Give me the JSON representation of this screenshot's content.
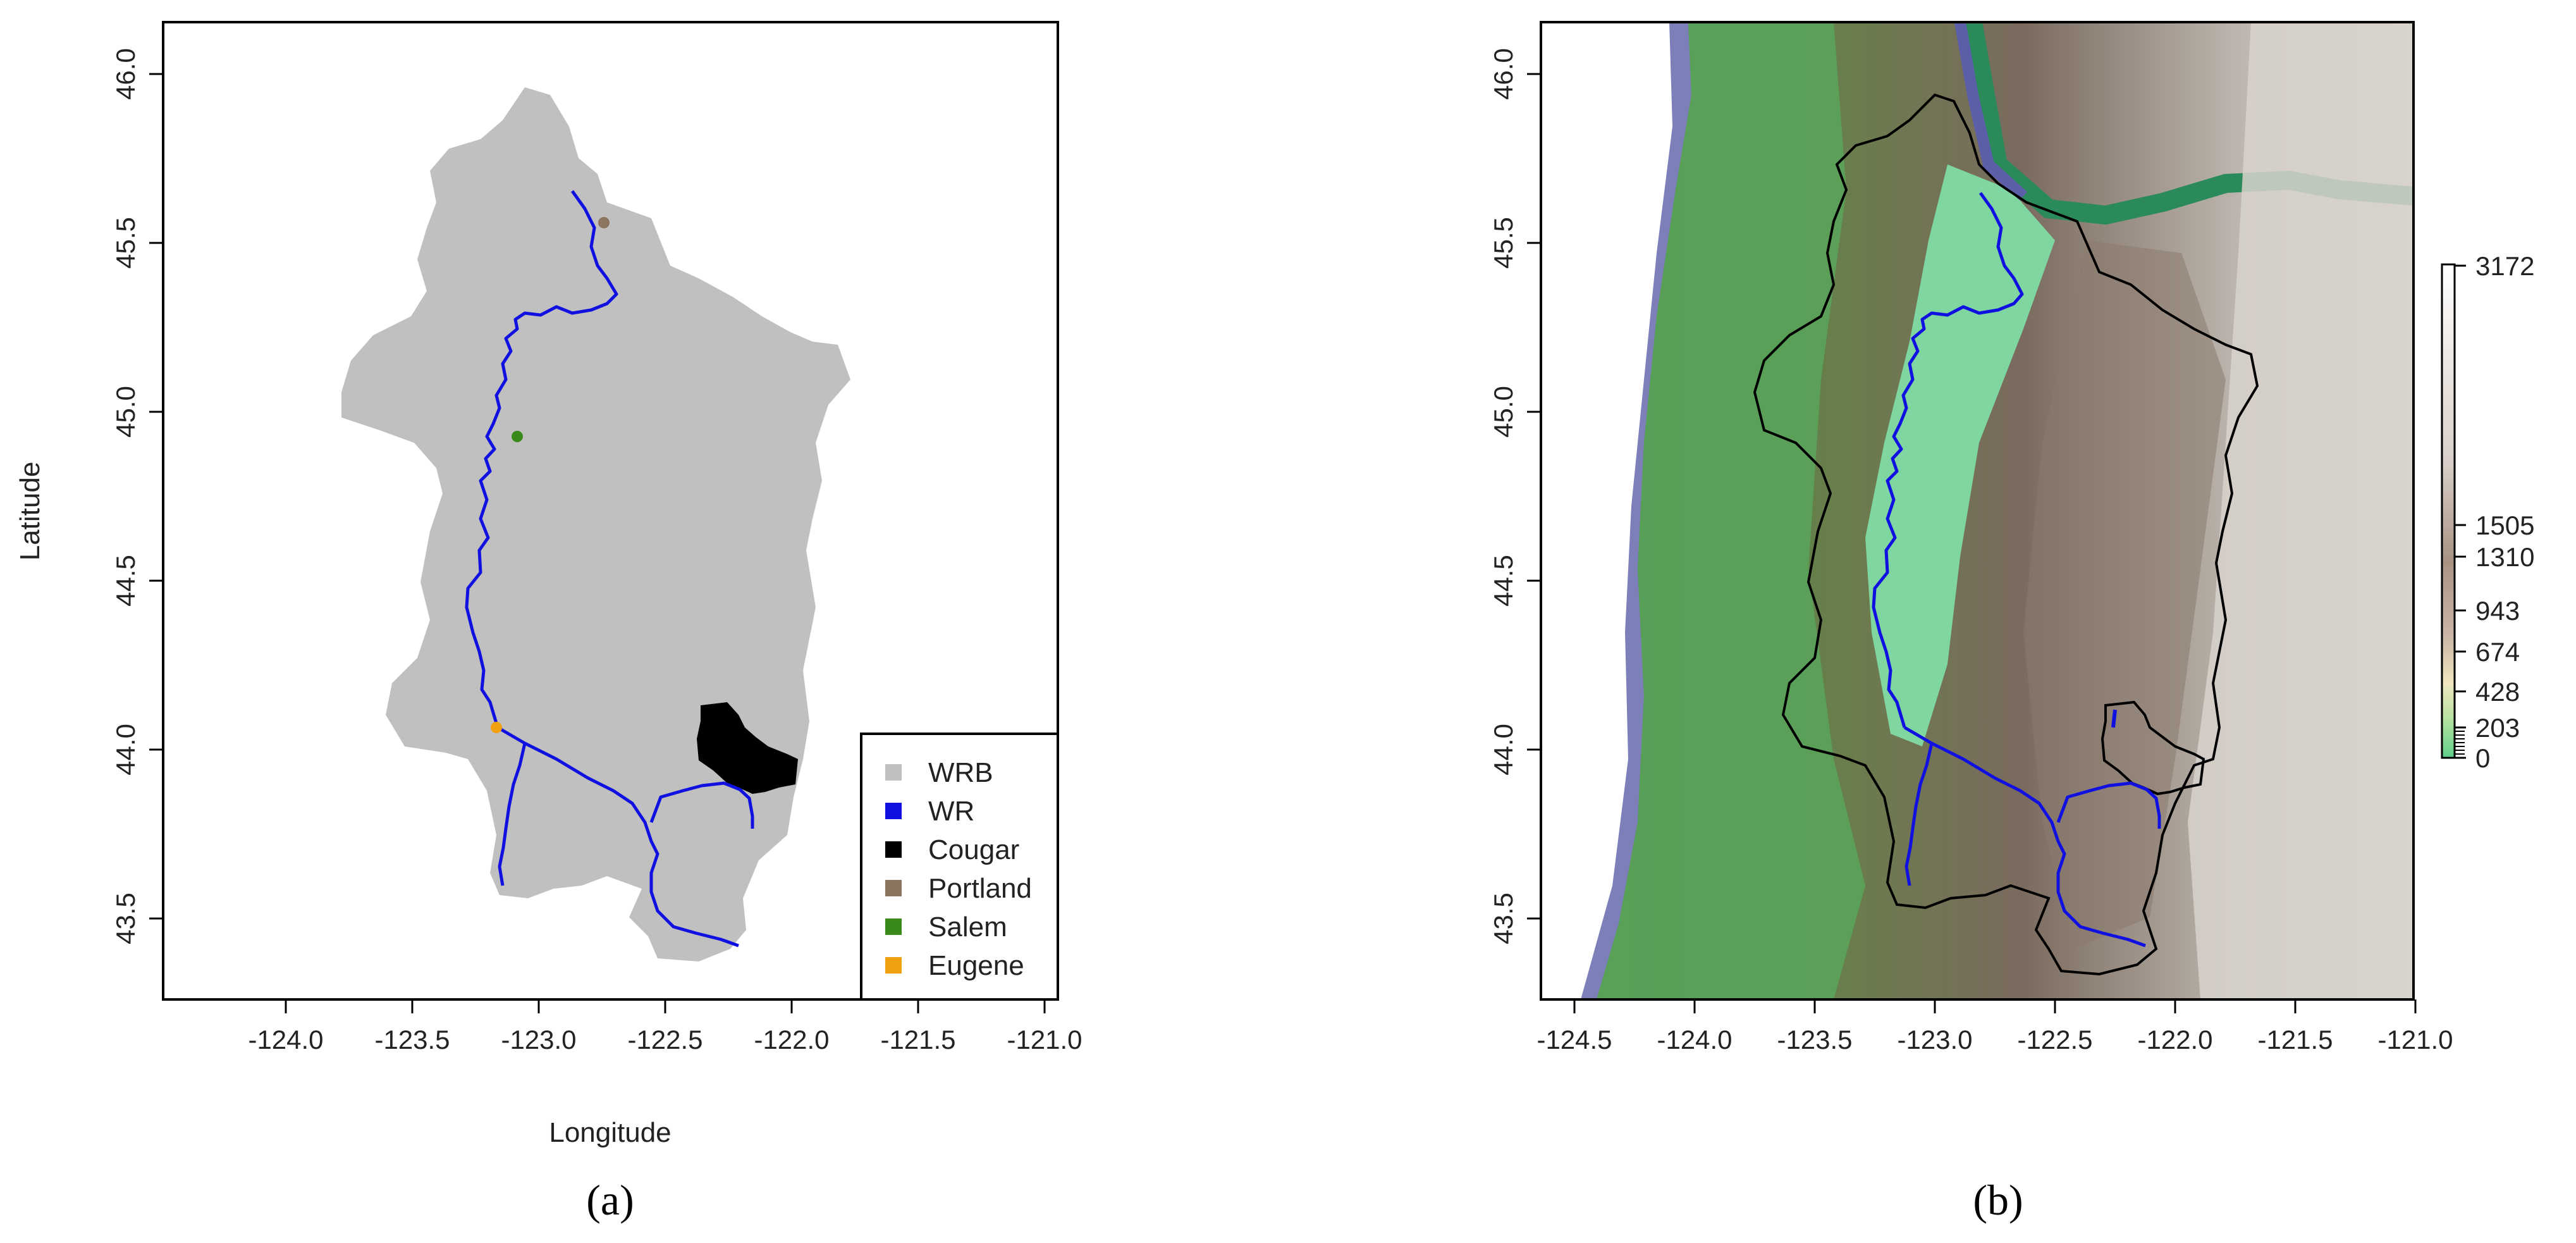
{
  "panel_a": {
    "caption": "(a)",
    "xlabel": "Longitude",
    "ylabel": "Latitude",
    "x_ticks": [
      "-124.0",
      "-123.5",
      "-123.0",
      "-122.5",
      "-122.0",
      "-121.5",
      "-121.0"
    ],
    "y_ticks": [
      "43.5",
      "44.0",
      "44.5",
      "45.0",
      "45.5",
      "46.0"
    ],
    "legend": [
      {
        "label": "WRB",
        "color": "#c0c0c0"
      },
      {
        "label": "WR",
        "color": "#1010e0"
      },
      {
        "label": "Cougar",
        "color": "#000000"
      },
      {
        "label": "Portland",
        "color": "#8c7560"
      },
      {
        "label": "Salem",
        "color": "#3a8a1a"
      },
      {
        "label": "Eugene",
        "color": "#f0a010"
      }
    ]
  },
  "panel_b": {
    "caption": "(b)",
    "x_ticks": [
      "-124.5",
      "-124.0",
      "-123.5",
      "-123.0",
      "-122.5",
      "-122.0",
      "-121.5",
      "-121.0"
    ],
    "y_ticks": [
      "43.5",
      "44.0",
      "44.5",
      "45.0",
      "45.5",
      "46.0"
    ],
    "colorbar_labels": [
      "3172",
      "1505",
      "1310",
      "943",
      "674",
      "428",
      "203",
      "0"
    ]
  },
  "colors": {
    "basin": "#c0c0c0",
    "river": "#1010e0",
    "ocean": "#7d80b8",
    "lowland": "#6fcf8f",
    "forest": "#4f9a4a",
    "mountain": "#7a6a5e",
    "high": "#e6e2de"
  }
}
